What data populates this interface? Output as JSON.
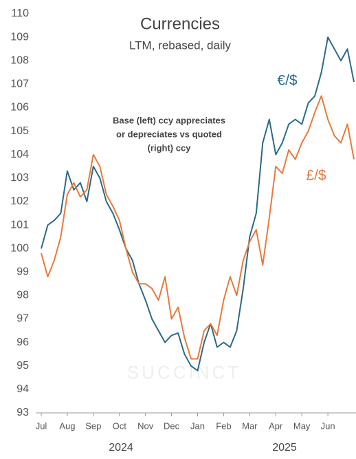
{
  "chart_data": {
    "type": "line",
    "title": "Currencies",
    "subtitle": "LTM, rebased, daily",
    "annotation": [
      "Base (left) ccy appreciates",
      "or depreciates vs quoted",
      "(right) ccy"
    ],
    "watermark": "SUCCINCT",
    "year_labels": [
      "2024",
      "2025"
    ],
    "categories": [
      "Jul",
      null,
      null,
      null,
      "Aug",
      null,
      null,
      null,
      "Sep",
      null,
      null,
      null,
      "Oct",
      null,
      null,
      null,
      "Nov",
      null,
      null,
      null,
      "Dec",
      null,
      null,
      null,
      "Jan",
      null,
      null,
      null,
      "Feb",
      null,
      null,
      null,
      "Mar",
      null,
      null,
      null,
      "Apr",
      null,
      null,
      null,
      "May",
      null,
      null,
      null,
      "Jun",
      null,
      null,
      null,
      null
    ],
    "series": [
      {
        "name": "€/$",
        "color": "#2a6a86",
        "values": [
          100,
          101,
          101.2,
          101.5,
          103.3,
          102.5,
          102.8,
          102,
          103.5,
          103,
          102,
          101.5,
          100.8,
          100,
          99.5,
          98.5,
          97.8,
          97,
          96.5,
          96,
          96.3,
          96.4,
          95.5,
          95,
          94.8,
          96,
          96.8,
          95.8,
          96,
          95.8,
          96.5,
          98.3,
          100.5,
          101.5,
          104.5,
          105.5,
          104,
          104.5,
          105.3,
          105.5,
          105.3,
          106.2,
          106.5,
          107.5,
          109,
          108.5,
          108,
          108.5,
          107.1
        ]
      },
      {
        "name": "£/$",
        "color": "#e8793a",
        "values": [
          99.8,
          98.8,
          99.5,
          100.5,
          102.3,
          102.8,
          102.2,
          102.5,
          104,
          103.5,
          102.3,
          101.8,
          101.2,
          100,
          99,
          98.5,
          98.5,
          98.3,
          97.8,
          98.8,
          97,
          97.5,
          96.2,
          95.3,
          95.3,
          96.5,
          96.8,
          96.3,
          97.8,
          98.8,
          98,
          99.5,
          100.3,
          100.8,
          99.3,
          101.3,
          103.5,
          103.2,
          104.2,
          103.8,
          104.5,
          105,
          105.8,
          106.5,
          105.5,
          104.8,
          104.5,
          105.3,
          103.8
        ]
      }
    ],
    "ylim": [
      93,
      110
    ],
    "yticks": [
      93,
      94,
      95,
      96,
      97,
      98,
      99,
      100,
      101,
      102,
      103,
      104,
      105,
      106,
      107,
      108,
      109,
      110
    ]
  }
}
